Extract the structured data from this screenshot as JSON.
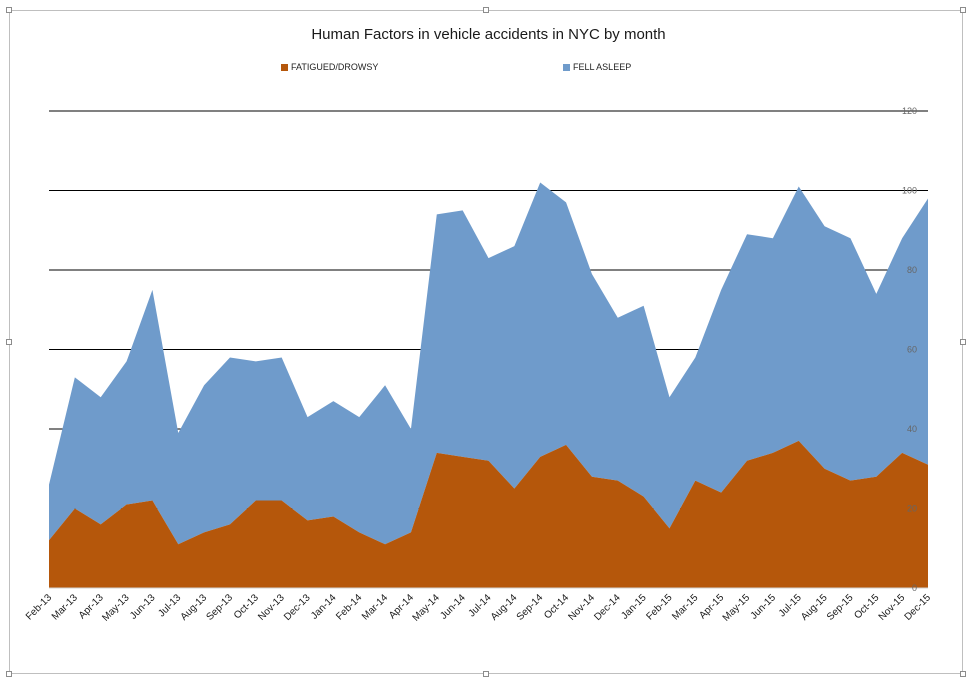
{
  "colors": {
    "fatigued": "#b5570b",
    "fell_asleep": "#6f9bcb",
    "gridline": "#000000"
  },
  "chart_data": {
    "type": "area",
    "stacked": true,
    "title": "Human Factors in vehicle accidents in NYC by month",
    "legend_position": "top",
    "y_axis_position": "right",
    "grid": true,
    "ylim": [
      0,
      120
    ],
    "yticks": [
      0,
      20,
      40,
      60,
      80,
      100,
      120
    ],
    "x": [
      "Feb-13",
      "Mar-13",
      "Apr-13",
      "May-13",
      "Jun-13",
      "Jul-13",
      "Aug-13",
      "Sep-13",
      "Oct-13",
      "Nov-13",
      "Dec-13",
      "Jan-14",
      "Feb-14",
      "Mar-14",
      "Apr-14",
      "May-14",
      "Jun-14",
      "Jul-14",
      "Aug-14",
      "Sep-14",
      "Oct-14",
      "Nov-14",
      "Dec-14",
      "Jan-15",
      "Feb-15",
      "Mar-15",
      "Apr-15",
      "May-15",
      "Jun-15",
      "Jul-15",
      "Aug-15",
      "Sep-15",
      "Oct-15",
      "Nov-15",
      "Dec-15"
    ],
    "series": [
      {
        "name": "FATIGUED/DROWSY",
        "values": [
          12,
          20,
          16,
          21,
          22,
          11,
          14,
          16,
          22,
          22,
          17,
          18,
          14,
          11,
          14,
          34,
          33,
          32,
          25,
          33,
          36,
          28,
          27,
          23,
          15,
          27,
          24,
          32,
          34,
          37,
          30,
          27,
          28,
          34,
          31
        ]
      },
      {
        "name": "FELL ASLEEP",
        "values": [
          14,
          33,
          32,
          36,
          53,
          28,
          37,
          42,
          35,
          36,
          26,
          29,
          29,
          40,
          26,
          60,
          62,
          51,
          61,
          69,
          61,
          51,
          41,
          48,
          33,
          31,
          51,
          57,
          54,
          64,
          61,
          61,
          46,
          54,
          67
        ]
      }
    ]
  }
}
